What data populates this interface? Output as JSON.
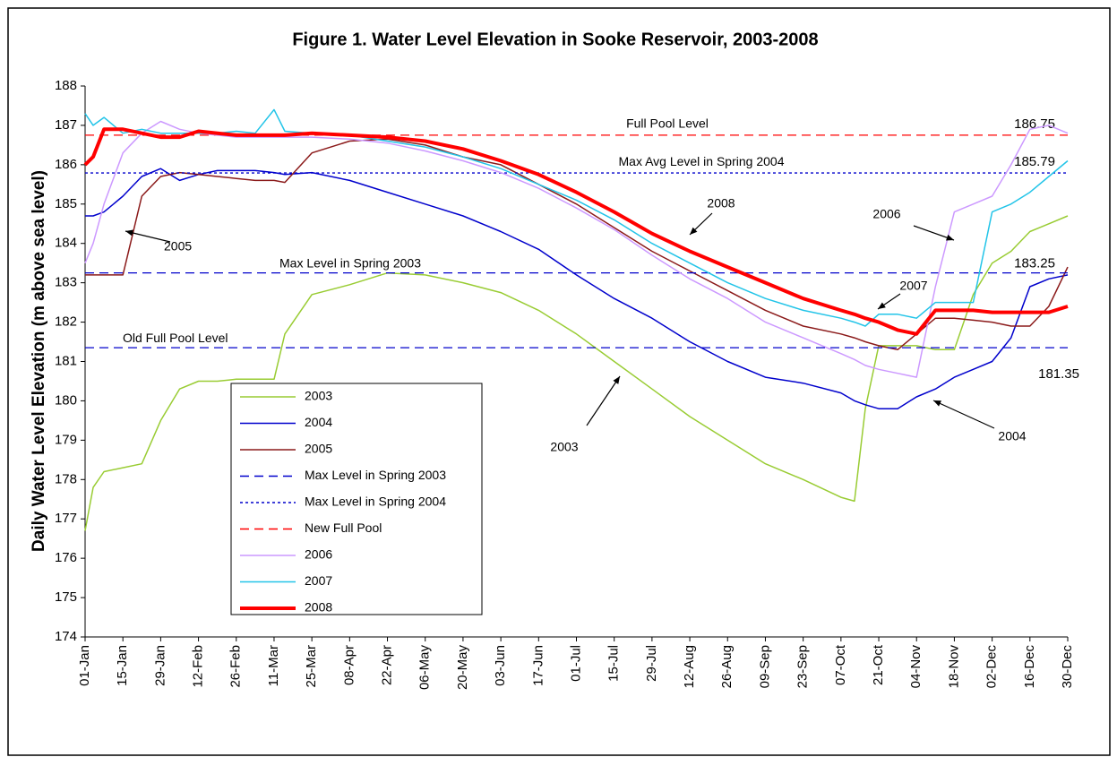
{
  "chart_data": {
    "type": "line",
    "title": "Figure 1.  Water Level Elevation in Sooke Reservoir, 2003-2008",
    "y_label": "Daily Water Level Elevation (m above sea level)",
    "x": [
      1,
      4,
      8,
      15,
      22,
      29,
      36,
      43,
      50,
      57,
      64,
      71,
      75,
      85,
      99,
      113,
      127,
      141,
      155,
      169,
      183,
      197,
      211,
      225,
      239,
      253,
      267,
      281,
      286,
      290,
      295,
      302,
      309,
      316,
      323,
      330,
      337,
      344,
      351,
      358,
      365
    ],
    "xlim": [
      1,
      365
    ],
    "xticks": [
      {
        "value": 1,
        "label": "01-Jan"
      },
      {
        "value": 15,
        "label": "15-Jan"
      },
      {
        "value": 29,
        "label": "29-Jan"
      },
      {
        "value": 43,
        "label": "12-Feb"
      },
      {
        "value": 57,
        "label": "26-Feb"
      },
      {
        "value": 71,
        "label": "11-Mar"
      },
      {
        "value": 85,
        "label": "25-Mar"
      },
      {
        "value": 99,
        "label": "08-Apr"
      },
      {
        "value": 113,
        "label": "22-Apr"
      },
      {
        "value": 127,
        "label": "06-May"
      },
      {
        "value": 141,
        "label": "20-May"
      },
      {
        "value": 155,
        "label": "03-Jun"
      },
      {
        "value": 169,
        "label": "17-Jun"
      },
      {
        "value": 183,
        "label": "01-Jul"
      },
      {
        "value": 197,
        "label": "15-Jul"
      },
      {
        "value": 211,
        "label": "29-Jul"
      },
      {
        "value": 225,
        "label": "12-Aug"
      },
      {
        "value": 239,
        "label": "26-Aug"
      },
      {
        "value": 253,
        "label": "09-Sep"
      },
      {
        "value": 267,
        "label": "23-Sep"
      },
      {
        "value": 281,
        "label": "07-Oct"
      },
      {
        "value": 295,
        "label": "21-Oct"
      },
      {
        "value": 309,
        "label": "04-Nov"
      },
      {
        "value": 323,
        "label": "18-Nov"
      },
      {
        "value": 337,
        "label": "02-Dec"
      },
      {
        "value": 351,
        "label": "16-Dec"
      },
      {
        "value": 365,
        "label": "30-Dec"
      }
    ],
    "ylim": [
      174,
      188
    ],
    "yticks": [
      174,
      175,
      176,
      177,
      178,
      179,
      180,
      181,
      182,
      183,
      184,
      185,
      186,
      187,
      188
    ],
    "series": [
      {
        "name": "2003",
        "color": "#99cc33",
        "values": [
          176.7,
          177.8,
          178.2,
          178.3,
          178.4,
          179.5,
          180.3,
          180.5,
          180.5,
          180.55,
          180.55,
          180.55,
          181.7,
          182.7,
          182.95,
          183.25,
          183.2,
          183.0,
          182.75,
          182.3,
          181.7,
          181.0,
          180.3,
          179.6,
          179.0,
          178.4,
          178.0,
          177.55,
          177.45,
          179.8,
          181.4,
          181.4,
          181.4,
          181.3,
          181.3,
          182.7,
          183.5,
          183.8,
          184.3,
          184.5,
          184.7
        ]
      },
      {
        "name": "2004",
        "color": "#0000cc",
        "values": [
          184.7,
          184.7,
          184.8,
          185.2,
          185.7,
          185.9,
          185.6,
          185.75,
          185.85,
          185.85,
          185.85,
          185.8,
          185.75,
          185.8,
          185.6,
          185.3,
          185.0,
          184.7,
          184.3,
          183.85,
          183.2,
          182.6,
          182.1,
          181.5,
          181.0,
          180.6,
          180.45,
          180.2,
          180.0,
          179.9,
          179.8,
          179.8,
          180.1,
          180.3,
          180.6,
          180.8,
          181.0,
          181.6,
          182.9,
          183.1,
          183.2
        ]
      },
      {
        "name": "2005",
        "color": "#8b1a1a",
        "values": [
          183.2,
          183.2,
          183.2,
          183.2,
          185.2,
          185.7,
          185.8,
          185.75,
          185.7,
          185.65,
          185.6,
          185.6,
          185.55,
          186.3,
          186.6,
          186.65,
          186.5,
          186.2,
          186.0,
          185.5,
          185.0,
          184.4,
          183.8,
          183.3,
          182.8,
          182.3,
          181.9,
          181.7,
          181.6,
          181.5,
          181.4,
          181.3,
          181.7,
          182.1,
          182.1,
          182.05,
          182.0,
          181.9,
          181.9,
          182.4,
          183.4
        ]
      },
      {
        "name": "Max Level in Spring 2003",
        "color": "#0000cc",
        "dash": "dashed",
        "value": 183.25,
        "annotation": "Max Level in Spring 2003"
      },
      {
        "name": "Max Level in Spring 2004",
        "color": "#0000cc",
        "dash": "dotted",
        "value": 185.79,
        "annotation": "Max Avg Level in Spring 2004"
      },
      {
        "name": "New Full Pool",
        "color": "#ff0000",
        "dash": "dashed",
        "value": 186.75,
        "annotation": "Full Pool Level"
      },
      {
        "name": "2006",
        "color": "#cc99ff",
        "values": [
          183.5,
          184.0,
          185.0,
          186.3,
          186.8,
          187.1,
          186.9,
          186.8,
          186.75,
          186.7,
          186.7,
          186.7,
          186.7,
          186.7,
          186.65,
          186.55,
          186.35,
          186.1,
          185.8,
          185.4,
          184.9,
          184.35,
          183.7,
          183.1,
          182.6,
          182.0,
          181.6,
          181.2,
          181.05,
          180.9,
          180.8,
          180.7,
          180.6,
          182.9,
          184.8,
          185.0,
          185.2,
          186.0,
          186.9,
          187.0,
          186.8
        ]
      },
      {
        "name": "2007",
        "color": "#22c4e8",
        "values": [
          187.3,
          187.0,
          187.2,
          186.8,
          186.9,
          186.8,
          186.8,
          186.8,
          186.8,
          186.85,
          186.8,
          187.4,
          186.85,
          186.8,
          186.75,
          186.6,
          186.45,
          186.2,
          185.9,
          185.5,
          185.1,
          184.6,
          184.0,
          183.5,
          183.0,
          182.6,
          182.3,
          182.1,
          182.0,
          181.9,
          182.2,
          182.2,
          182.1,
          182.5,
          182.5,
          182.5,
          184.8,
          185.0,
          185.3,
          185.7,
          186.1
        ]
      },
      {
        "name": "2008",
        "color": "#ff0000",
        "width": 4,
        "values": [
          186.0,
          186.2,
          186.9,
          186.9,
          186.8,
          186.7,
          186.7,
          186.85,
          186.8,
          186.75,
          186.75,
          186.75,
          186.75,
          186.8,
          186.75,
          186.7,
          186.6,
          186.4,
          186.1,
          185.75,
          185.3,
          184.8,
          184.25,
          183.8,
          183.4,
          183.0,
          182.6,
          182.3,
          182.2,
          182.1,
          182.0,
          181.8,
          181.7,
          182.3,
          182.3,
          182.3,
          182.25,
          182.25,
          182.25,
          182.25,
          182.4
        ]
      },
      {
        "color": "#0000cc",
        "dash": "dashed",
        "value": 181.35,
        "annotation": "Old Full Pool Level"
      }
    ],
    "annotations": [
      "2005",
      "2008",
      "2006",
      "2007",
      "2003",
      "2004"
    ]
  }
}
